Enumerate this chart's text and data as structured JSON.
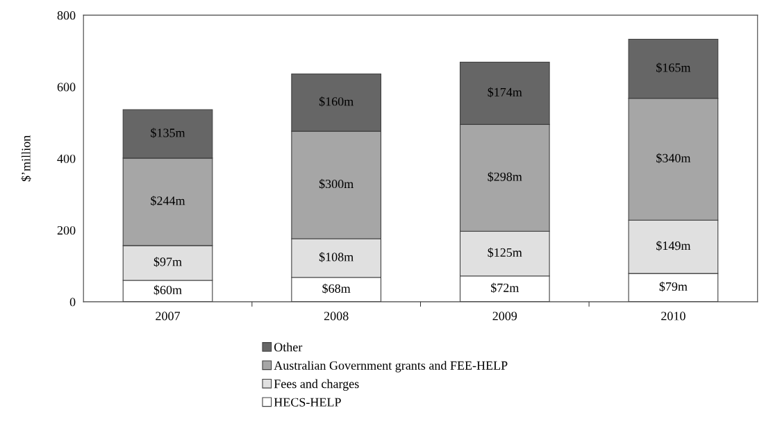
{
  "chart_data": {
    "type": "bar",
    "stacked": true,
    "ylabel": "$’million",
    "categories": [
      "2007",
      "2008",
      "2009",
      "2010"
    ],
    "series": [
      {
        "name": "HECS-HELP",
        "color": "#ffffff",
        "values": [
          60,
          68,
          72,
          79
        ],
        "value_labels": [
          "$60m",
          "$68m",
          "$72m",
          "$79m"
        ]
      },
      {
        "name": "Fees and charges",
        "color": "#e0e0e0",
        "values": [
          97,
          108,
          125,
          149
        ],
        "value_labels": [
          "$97m",
          "$108m",
          "$125m",
          "$149m"
        ]
      },
      {
        "name": "Australian Government grants and FEE-HELP",
        "color": "#a6a6a6",
        "values": [
          244,
          300,
          298,
          340
        ],
        "value_labels": [
          "$244m",
          "$300m",
          "$298m",
          "$340m"
        ]
      },
      {
        "name": "Other",
        "color": "#666666",
        "values": [
          135,
          160,
          174,
          165
        ],
        "value_labels": [
          "$135m",
          "$160m",
          "$174m",
          "$165m"
        ]
      }
    ],
    "ylim": [
      0,
      800
    ],
    "yticks": [
      0,
      200,
      400,
      600,
      800
    ],
    "grid": false,
    "legend": "bottom"
  }
}
